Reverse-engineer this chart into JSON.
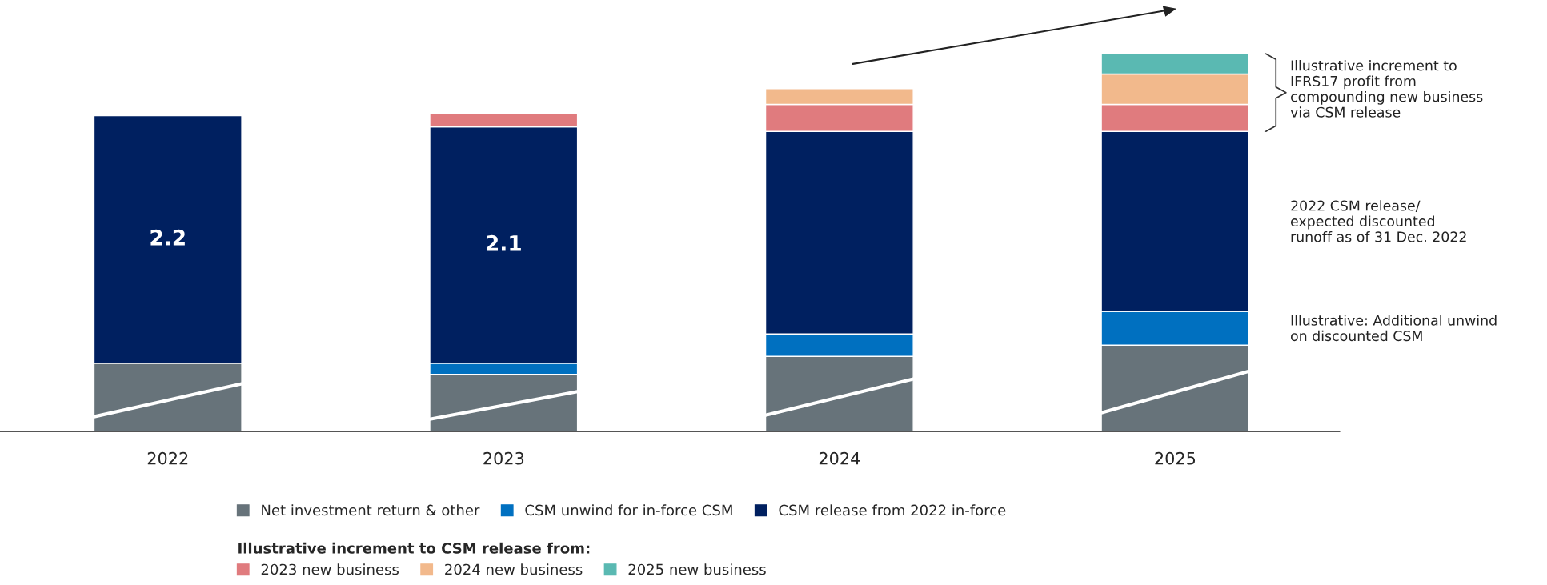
{
  "chart_data": {
    "type": "bar",
    "stacked": true,
    "categories": [
      "2022",
      "2023",
      "2024",
      "2025"
    ],
    "series": [
      {
        "name": "Net investment return & other",
        "color": "#67737a",
        "values": [
          0.61,
          0.51,
          0.67,
          0.77
        ]
      },
      {
        "name": "CSM unwind for in-force CSM",
        "color": "#0070c0",
        "values": [
          null,
          0.1,
          0.2,
          0.3
        ]
      },
      {
        "name": "CSM release from 2022 in-force",
        "color": "#002060",
        "values": [
          2.2,
          2.1,
          1.8,
          1.6
        ],
        "value_labels": [
          "2.2",
          "2.1",
          null,
          null
        ]
      },
      {
        "name": "2023 new business",
        "color": "#e07b7e",
        "values": [
          null,
          0.12,
          0.24,
          0.24
        ]
      },
      {
        "name": "2024 new business",
        "color": "#f2b98c",
        "values": [
          null,
          null,
          0.14,
          0.27
        ]
      },
      {
        "name": "2025 new business",
        "color": "#5ab9b2",
        "values": [
          null,
          null,
          null,
          0.18
        ]
      }
    ],
    "legend_title": "Illustrative increment to CSM release from:",
    "legend": "bottom",
    "tick_labels": "x",
    "annotations": [
      "Illustrative increment to\nIFRS17 profit from\ncompounding new business\nvia CSM release",
      "2022 CSM release/\nexpected discounted\nrunoff as of 31 Dec. 2022",
      "Illustrative: Additional unwind\non discounted CSM"
    ]
  }
}
